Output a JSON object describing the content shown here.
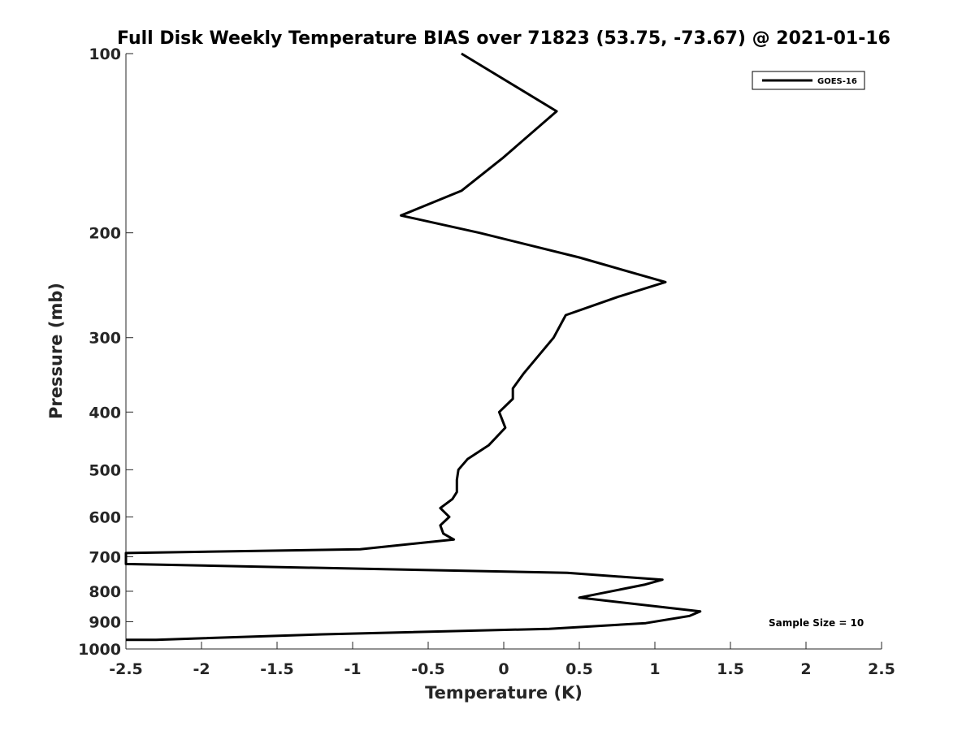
{
  "chart_data": {
    "type": "line",
    "title": "Full Disk Weekly Temperature BIAS over 71823 (53.75, -73.67) @ 2021-01-16",
    "xlabel": "Temperature (K)",
    "ylabel": "Pressure (mb)",
    "xlim": [
      -2.5,
      2.5
    ],
    "ylim": [
      100,
      1000
    ],
    "y_scale": "log",
    "y_reversed": true,
    "x_ticks": [
      "-2.5",
      "-2",
      "-1.5",
      "-1",
      "-0.5",
      "0",
      "0.5",
      "1",
      "1.5",
      "2",
      "2.5"
    ],
    "y_ticks": [
      "100",
      "200",
      "300",
      "400",
      "500",
      "600",
      "700",
      "800",
      "900",
      "1000"
    ],
    "grid": false,
    "legend": {
      "position": "top-right",
      "entries": [
        "GOES-16"
      ]
    },
    "annotation": "Sample Size = 10",
    "series": [
      {
        "name": "GOES-16",
        "color": "#000000",
        "points": [
          [
            -0.28,
            100
          ],
          [
            0.35,
            125
          ],
          [
            -0.01,
            150
          ],
          [
            -0.28,
            170
          ],
          [
            -0.68,
            187
          ],
          [
            -0.16,
            200
          ],
          [
            0.5,
            220
          ],
          [
            1.07,
            242
          ],
          [
            0.76,
            256
          ],
          [
            0.41,
            275
          ],
          [
            0.33,
            300
          ],
          [
            0.13,
            345
          ],
          [
            0.06,
            365
          ],
          [
            0.06,
            380
          ],
          [
            -0.03,
            400
          ],
          [
            0.01,
            425
          ],
          [
            -0.1,
            455
          ],
          [
            -0.24,
            480
          ],
          [
            -0.3,
            500
          ],
          [
            -0.31,
            520
          ],
          [
            -0.31,
            545
          ],
          [
            -0.34,
            560
          ],
          [
            -0.42,
            580
          ],
          [
            -0.36,
            600
          ],
          [
            -0.42,
            620
          ],
          [
            -0.4,
            640
          ],
          [
            -0.33,
            655
          ],
          [
            -0.95,
            680
          ],
          [
            -2.5,
            690
          ],
          [
            -2.5,
            720
          ],
          [
            0.42,
            745
          ],
          [
            1.05,
            765
          ],
          [
            0.93,
            780
          ],
          [
            0.5,
            820
          ],
          [
            1.3,
            865
          ],
          [
            1.23,
            880
          ],
          [
            0.94,
            905
          ],
          [
            0.3,
            925
          ],
          [
            -1.2,
            945
          ],
          [
            -2.3,
            965
          ],
          [
            -2.5,
            965
          ]
        ]
      }
    ]
  }
}
